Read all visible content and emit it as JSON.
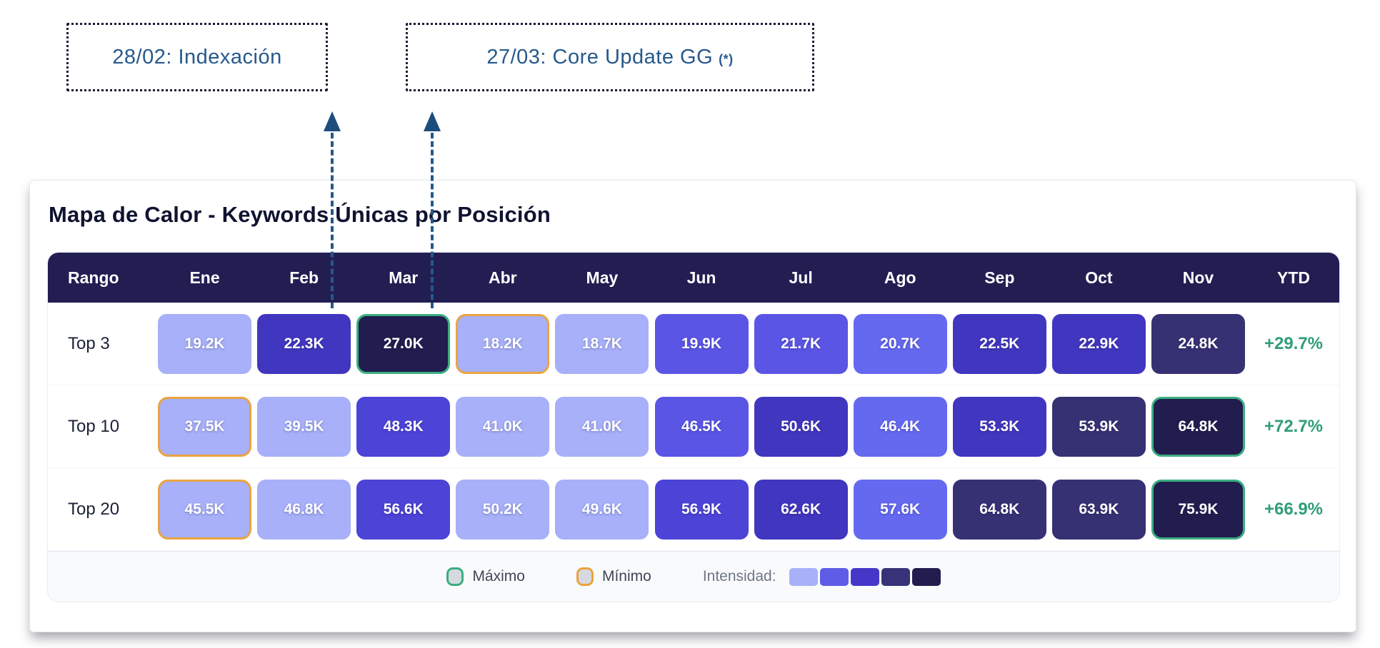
{
  "annotations": [
    {
      "label": "28/02: Indexación",
      "suffix": ""
    },
    {
      "label": "27/03: Core Update GG",
      "suffix": "(*)"
    }
  ],
  "card": {
    "title": "Mapa de Calor - Keywords Únicas por Posición",
    "table": {
      "rank_header": "Rango",
      "months": [
        "Ene",
        "Feb",
        "Mar",
        "Abr",
        "May",
        "Jun",
        "Jul",
        "Ago",
        "Sep",
        "Oct",
        "Nov"
      ],
      "ytd_header": "YTD",
      "rows": [
        {
          "label": "Top 3",
          "ytd": "+29.7%",
          "cells": [
            {
              "value": "19.2K",
              "level": 1,
              "marker": null
            },
            {
              "value": "22.3K",
              "level": 5,
              "marker": null
            },
            {
              "value": "27.0K",
              "level": 7,
              "marker": "max"
            },
            {
              "value": "18.2K",
              "level": 1,
              "marker": "min"
            },
            {
              "value": "18.7K",
              "level": 1,
              "marker": null
            },
            {
              "value": "19.9K",
              "level": 3,
              "marker": null
            },
            {
              "value": "21.7K",
              "level": 3,
              "marker": null
            },
            {
              "value": "20.7K",
              "level": 2,
              "marker": null
            },
            {
              "value": "22.5K",
              "level": 5,
              "marker": null
            },
            {
              "value": "22.9K",
              "level": 5,
              "marker": null
            },
            {
              "value": "24.8K",
              "level": 6,
              "marker": null
            }
          ]
        },
        {
          "label": "Top 10",
          "ytd": "+72.7%",
          "cells": [
            {
              "value": "37.5K",
              "level": 1,
              "marker": "min"
            },
            {
              "value": "39.5K",
              "level": 1,
              "marker": null
            },
            {
              "value": "48.3K",
              "level": 4,
              "marker": null
            },
            {
              "value": "41.0K",
              "level": 1,
              "marker": null
            },
            {
              "value": "41.0K",
              "level": 1,
              "marker": null
            },
            {
              "value": "46.5K",
              "level": 3,
              "marker": null
            },
            {
              "value": "50.6K",
              "level": 5,
              "marker": null
            },
            {
              "value": "46.4K",
              "level": 2,
              "marker": null
            },
            {
              "value": "53.3K",
              "level": 5,
              "marker": null
            },
            {
              "value": "53.9K",
              "level": 6,
              "marker": null
            },
            {
              "value": "64.8K",
              "level": 7,
              "marker": "max"
            }
          ]
        },
        {
          "label": "Top 20",
          "ytd": "+66.9%",
          "cells": [
            {
              "value": "45.5K",
              "level": 1,
              "marker": "min"
            },
            {
              "value": "46.8K",
              "level": 1,
              "marker": null
            },
            {
              "value": "56.6K",
              "level": 4,
              "marker": null
            },
            {
              "value": "50.2K",
              "level": 1,
              "marker": null
            },
            {
              "value": "49.6K",
              "level": 1,
              "marker": null
            },
            {
              "value": "56.9K",
              "level": 4,
              "marker": null
            },
            {
              "value": "62.6K",
              "level": 5,
              "marker": null
            },
            {
              "value": "57.6K",
              "level": 2,
              "marker": null
            },
            {
              "value": "64.8K",
              "level": 6,
              "marker": null
            },
            {
              "value": "63.9K",
              "level": 6,
              "marker": null
            },
            {
              "value": "75.9K",
              "level": 7,
              "marker": "max"
            }
          ]
        }
      ]
    },
    "legend": {
      "max_label": "Máximo",
      "min_label": "Mínimo",
      "intensity_label": "Intensidad:",
      "max_color": "#3cae80",
      "min_color": "#eaa43f",
      "intensity_swatches": [
        "#a7b0f8",
        "#5f5ce8",
        "#4538c9",
        "#373379",
        "#211d4e"
      ]
    }
  },
  "palette": {
    "1": "#a7b0f8",
    "2": "#6569f0",
    "3": "#5b55e6",
    "4": "#4c43d7",
    "5": "#4136bf",
    "6": "#363173",
    "7": "#211d4e"
  },
  "chart_data": {
    "type": "heatmap",
    "title": "Mapa de Calor - Keywords Únicas por Posición",
    "x_categories": [
      "Ene",
      "Feb",
      "Mar",
      "Abr",
      "May",
      "Jun",
      "Jul",
      "Ago",
      "Sep",
      "Oct",
      "Nov"
    ],
    "y_categories": [
      "Top 3",
      "Top 10",
      "Top 20"
    ],
    "values_unit": "K",
    "series": [
      {
        "name": "Top 3",
        "values": [
          19.2,
          22.3,
          27.0,
          18.2,
          18.7,
          19.9,
          21.7,
          20.7,
          22.5,
          22.9,
          24.8
        ],
        "ytd": "+29.7%",
        "max_month": "Mar",
        "min_month": "Abr"
      },
      {
        "name": "Top 10",
        "values": [
          37.5,
          39.5,
          48.3,
          41.0,
          41.0,
          46.5,
          50.6,
          46.4,
          53.3,
          53.9,
          64.8
        ],
        "ytd": "+72.7%",
        "max_month": "Nov",
        "min_month": "Ene"
      },
      {
        "name": "Top 20",
        "values": [
          45.5,
          46.8,
          56.6,
          50.2,
          49.6,
          56.9,
          62.6,
          57.6,
          64.8,
          63.9,
          75.9
        ],
        "ytd": "+66.9%",
        "max_month": "Nov",
        "min_month": "Ene"
      }
    ],
    "annotations": [
      {
        "text": "28/02: Indexación",
        "points_between": [
          "Feb",
          "Mar"
        ]
      },
      {
        "text": "27/03: Core Update GG (*)",
        "points_between": [
          "Mar",
          "Abr"
        ]
      }
    ],
    "legend": {
      "max": "Máximo",
      "min": "Mínimo",
      "intensity": "Intensidad:"
    },
    "intensity_scale_hex": [
      "#a7b0f8",
      "#5f5ce8",
      "#4538c9",
      "#373379",
      "#211d4e"
    ]
  }
}
